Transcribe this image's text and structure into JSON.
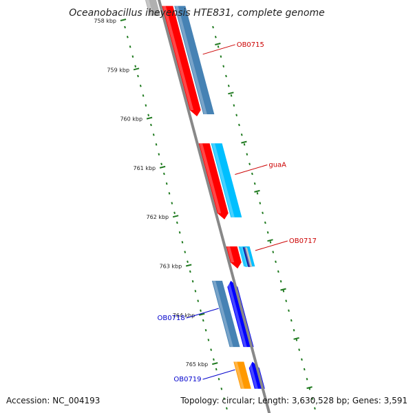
{
  "title": "Oceanobacillus iheyensis HTE831, complete genome",
  "footer": {
    "accession": "Accession: NC_004193",
    "topology": "Topology: circular; Length: 3,630,528 bp; Genes: 3,591"
  },
  "colors": {
    "backbone": "#888888",
    "ruler": "#1f7a1f",
    "red": "#ff0000",
    "steelblue": "#4682b4",
    "deepskyblue": "#00bfff",
    "blue": "#0000ff",
    "orange": "#ff9900",
    "forward_label": "#cc0000",
    "reverse_label": "#0000cc"
  },
  "ticks": [
    {
      "label": "758 kbp",
      "kbp": 758
    },
    {
      "label": "759 kbp",
      "kbp": 759
    },
    {
      "label": "760 kbp",
      "kbp": 760
    },
    {
      "label": "761 kbp",
      "kbp": 761
    },
    {
      "label": "762 kbp",
      "kbp": 762
    },
    {
      "label": "763 kbp",
      "kbp": 763
    },
    {
      "label": "764 kbp",
      "kbp": 764
    },
    {
      "label": "765 kbp",
      "kbp": 765
    }
  ],
  "genes": [
    {
      "label": "OB0715",
      "strand": "forward",
      "start_kbp": 757.7,
      "end_kbp": 759.95
    },
    {
      "label": "guaA",
      "strand": "forward",
      "start_kbp": 760.5,
      "end_kbp": 762.05
    },
    {
      "label": "OB0717",
      "strand": "forward",
      "start_kbp": 762.6,
      "end_kbp": 763.05
    },
    {
      "label": "OB0718",
      "strand": "reverse",
      "start_kbp": 763.3,
      "end_kbp": 764.65
    },
    {
      "label": "OB0719",
      "strand": "reverse",
      "start_kbp": 764.95,
      "end_kbp": 765.5
    }
  ]
}
